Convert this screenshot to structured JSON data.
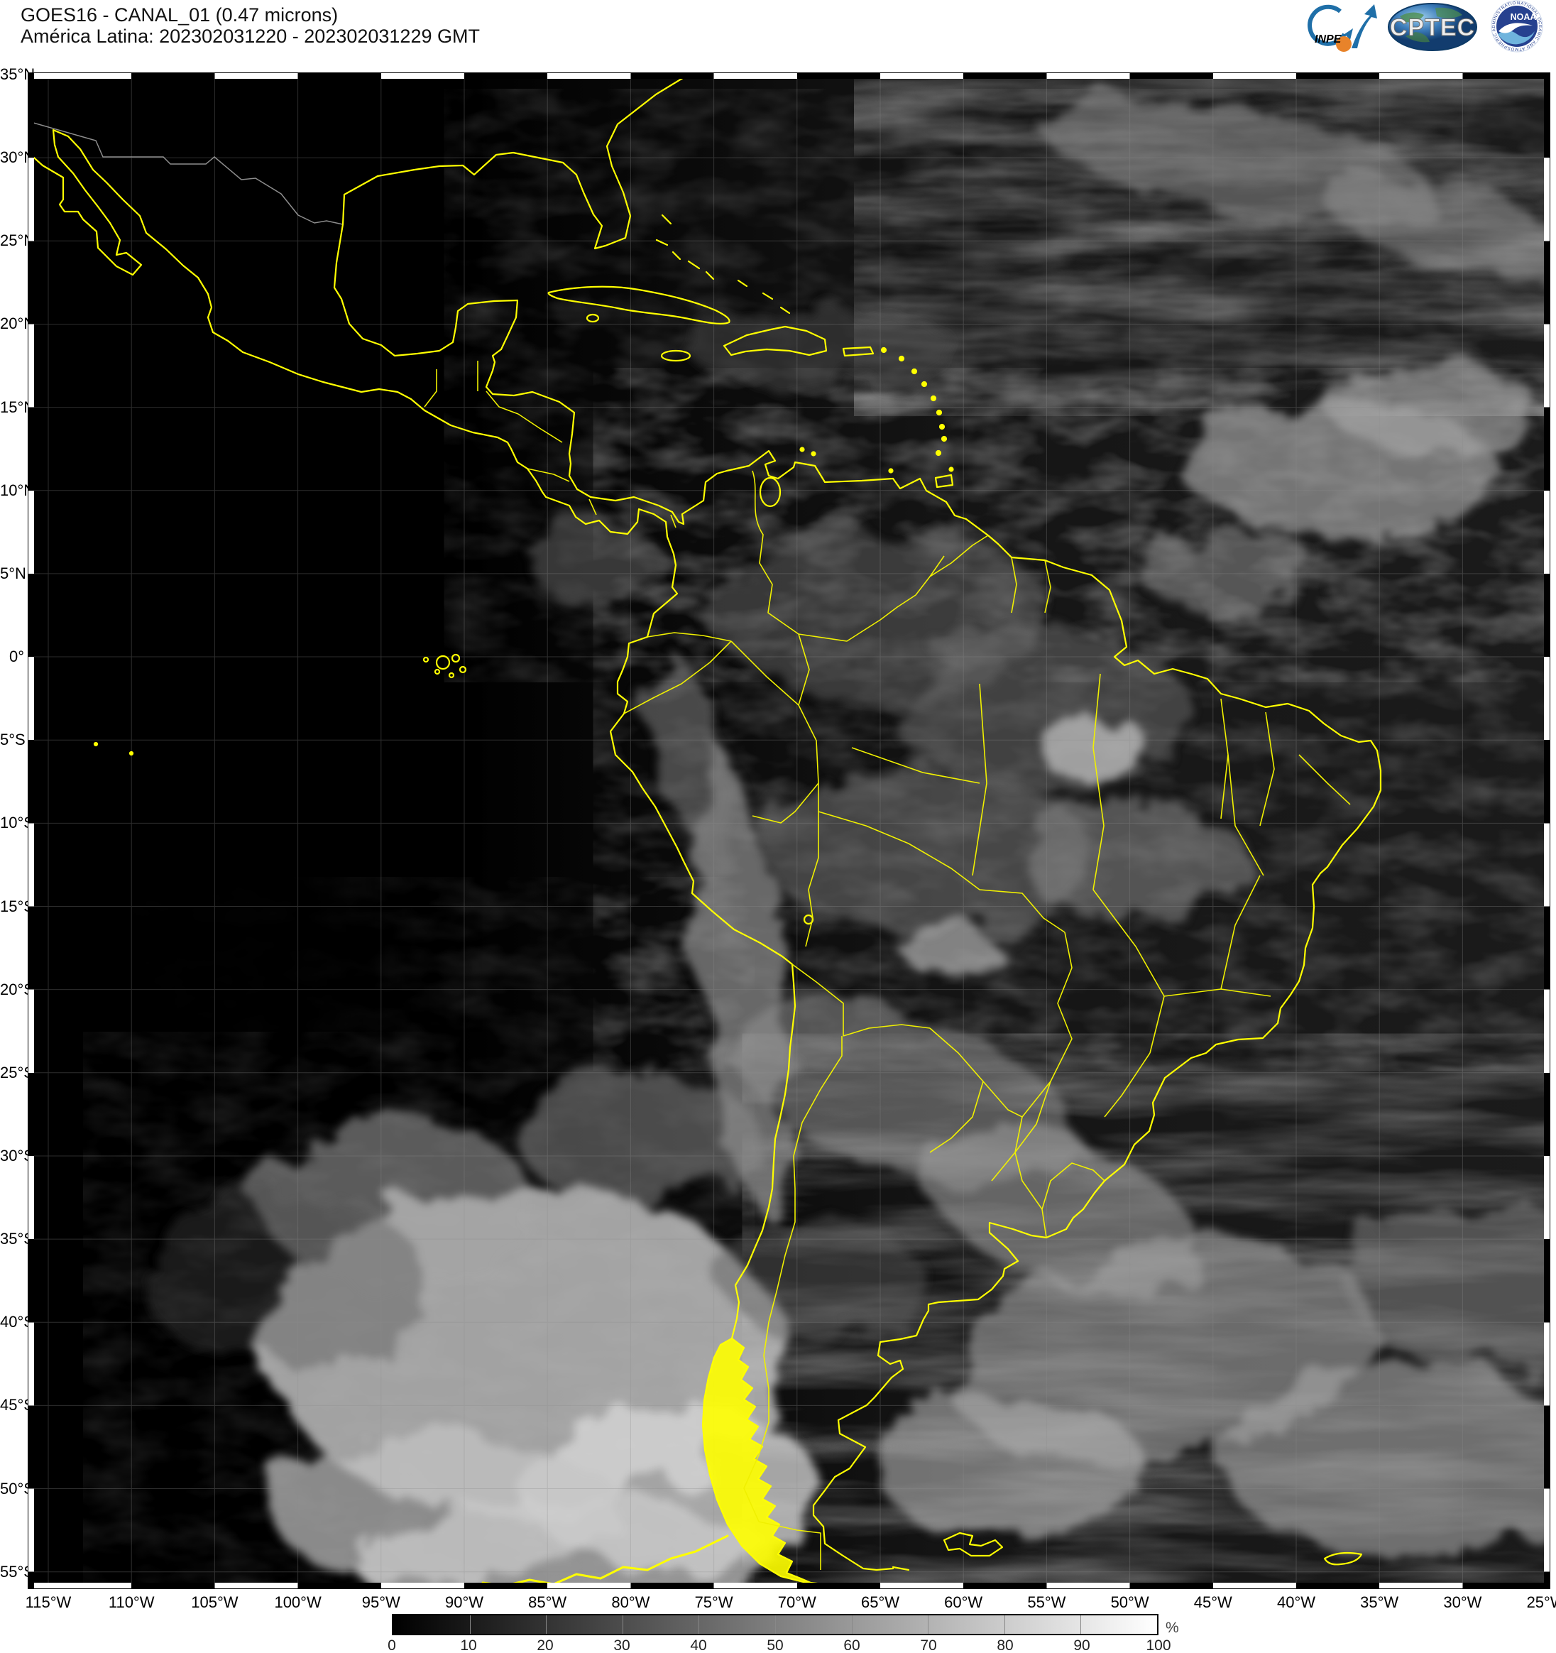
{
  "header": {
    "title_line1": "GOES16 - CANAL_01 (0.47 microns)",
    "title_line2": "América Latina: 202302031220 - 202302031229 GMT"
  },
  "logos": {
    "inpe_label": "INPE",
    "cptec_label": "CPTEC",
    "noaa_label": "NOAA",
    "noaa_ring_text": "NATIONAL OCEANIC AND ATMOSPHERIC ADMINISTRATION"
  },
  "map": {
    "lat_labels": [
      "35°N",
      "30°N",
      "25°N",
      "20°N",
      "15°N",
      "10°N",
      "5°N",
      "0°",
      "5°S",
      "10°S",
      "15°S",
      "20°S",
      "25°S",
      "30°S",
      "35°S",
      "40°S",
      "45°S",
      "50°S",
      "55°S"
    ],
    "lon_labels": [
      "115°W",
      "110°W",
      "105°W",
      "100°W",
      "95°W",
      "90°W",
      "85°W",
      "80°W",
      "75°W",
      "70°W",
      "65°W",
      "60°W",
      "55°W",
      "50°W",
      "45°W",
      "40°W",
      "35°W",
      "30°W",
      "25°W"
    ]
  },
  "colorbar": {
    "tick_labels": [
      "0",
      "10",
      "20",
      "30",
      "40",
      "50",
      "60",
      "70",
      "80",
      "90",
      "100"
    ],
    "unit": "%"
  },
  "colors": {
    "coastline_yellow": "#ffff00",
    "map_background": "#000000",
    "page_background": "#ffffff",
    "noaa_blue": "#26418f",
    "cptec_blue": "#1a4f8a"
  }
}
